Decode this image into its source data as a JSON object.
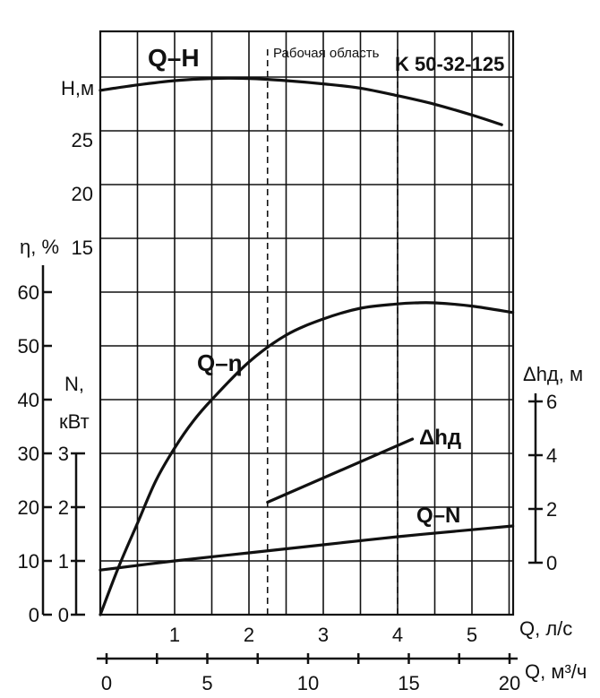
{
  "chart_data": {
    "type": "line",
    "title": "K 50-32-125",
    "grid": true,
    "working_range_label": "Рабочая область",
    "working_range_q_ls": [
      2.25,
      4.0
    ],
    "x_axes": {
      "q_ls": {
        "label": "Q, л/с",
        "ticks": [
          "1",
          "2",
          "3",
          "4",
          "5"
        ],
        "range": [
          0,
          5.55
        ]
      },
      "q_m3h": {
        "label": "Q, м³/ч",
        "ticks": [
          "0",
          "5",
          "10",
          "15",
          "20"
        ],
        "range": [
          0,
          20
        ]
      }
    },
    "y_axes": {
      "head": {
        "label": "H,м",
        "ticks": [
          "15",
          "20",
          "25"
        ]
      },
      "efficiency": {
        "label": "η, %",
        "ticks": [
          "0",
          "10",
          "20",
          "30",
          "40",
          "50",
          "60"
        ],
        "range": [
          0,
          60
        ]
      },
      "power": {
        "label": "N, кВт",
        "label_line1": "N,",
        "label_line2": "кВт",
        "ticks": [
          "0",
          "1",
          "2",
          "3"
        ],
        "range": [
          0,
          3
        ]
      },
      "npsh": {
        "label": "Δhд, м",
        "ticks": [
          "0",
          "2",
          "4",
          "6"
        ],
        "range": [
          0,
          6
        ]
      }
    },
    "series": [
      {
        "name": "Q–H",
        "axis": "head",
        "x": [
          0,
          0.5,
          1,
          1.5,
          2,
          2.5,
          3,
          3.5,
          4,
          4.5,
          5,
          5.4
        ],
        "y": [
          29.6,
          30.1,
          30.5,
          30.7,
          30.7,
          30.5,
          30.2,
          29.8,
          29.1,
          28.3,
          27.3,
          26.4
        ]
      },
      {
        "name": "Q–η",
        "axis": "efficiency",
        "x": [
          0,
          0.25,
          0.5,
          0.75,
          1,
          1.25,
          1.5,
          2,
          2.5,
          3,
          3.5,
          4,
          4.25,
          4.5,
          5,
          5.55
        ],
        "y": [
          0,
          9,
          17,
          25,
          31,
          36,
          40,
          47,
          52,
          55,
          57,
          57.8,
          58,
          58,
          57.4,
          56.2
        ]
      },
      {
        "name": "Q–N",
        "axis": "power",
        "x": [
          0,
          1,
          2,
          3,
          4,
          5,
          5.55
        ],
        "y": [
          0.83,
          1.0,
          1.15,
          1.3,
          1.45,
          1.58,
          1.65
        ]
      },
      {
        "name": "Δhд",
        "axis": "npsh",
        "x": [
          2.25,
          4.2
        ],
        "y": [
          2.25,
          4.6
        ]
      }
    ]
  }
}
